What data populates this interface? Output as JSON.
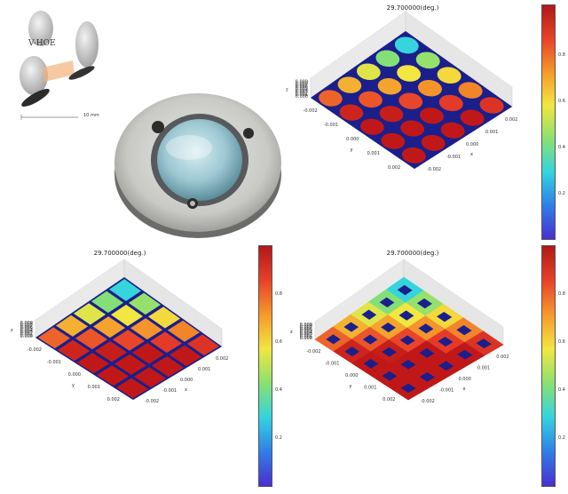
{
  "diagram": {
    "label": "V-HOE",
    "scale_label": "10 mm"
  },
  "plots": {
    "top_right": {
      "title": "29.700000(deg.)",
      "z_ticks": [
        "0.009",
        "0.008",
        "0.007",
        "0.006",
        "0.005",
        "0.004",
        "0.003",
        "0.002",
        "0.001",
        "0.000"
      ],
      "y_ticks": [
        "-0.002",
        "-0.001",
        "0.000",
        "0.001",
        "0.002"
      ],
      "x_ticks": [
        "-0.002",
        "-0.001",
        "0.000",
        "0.001",
        "0.002"
      ],
      "y_label": "y",
      "x_label": "x",
      "z_label": "z",
      "pattern": "circles"
    },
    "bottom_left": {
      "title": "29.700000(deg.)",
      "z_ticks": [
        "0.009",
        "0.008",
        "0.007",
        "0.006",
        "0.005",
        "0.004",
        "0.003",
        "0.002",
        "0.001",
        "0.000"
      ],
      "y_ticks": [
        "-0.002",
        "-0.001",
        "0.000",
        "0.001",
        "0.002"
      ],
      "x_ticks": [
        "-0.002",
        "-0.001",
        "0.000",
        "0.001",
        "0.002"
      ],
      "y_label": "y",
      "x_label": "x",
      "z_label": "z",
      "pattern": "big-squares"
    },
    "bottom_right": {
      "title": "29.700000(deg.)",
      "z_ticks": [
        "0.009",
        "0.008",
        "0.007",
        "0.006",
        "0.005",
        "0.004",
        "0.003",
        "0.002",
        "0.001",
        "0.000"
      ],
      "y_ticks": [
        "-0.002",
        "-0.001",
        "0.000",
        "0.001",
        "0.002"
      ],
      "x_ticks": [
        "-0.002",
        "-0.001",
        "0.000",
        "0.001",
        "0.002"
      ],
      "y_label": "y",
      "x_label": "x",
      "z_label": "z",
      "pattern": "small-squares"
    }
  },
  "colorbars": {
    "right_top": {
      "ticks": [
        "0.8",
        "0.6",
        "0.4",
        "0.2"
      ]
    },
    "middle": {
      "ticks": [
        "0.8",
        "0.6",
        "0.4",
        "0.2"
      ]
    },
    "right_bottom": {
      "ticks": [
        "0.8",
        "0.6",
        "0.4",
        "0.2"
      ]
    }
  },
  "colors": {
    "gap": "#1a1f8c",
    "jet": [
      "#3b1cc4",
      "#2f7ee8",
      "#33d4e0",
      "#8be070",
      "#f2e640",
      "#f59a2a",
      "#e8412a",
      "#c01818"
    ]
  }
}
